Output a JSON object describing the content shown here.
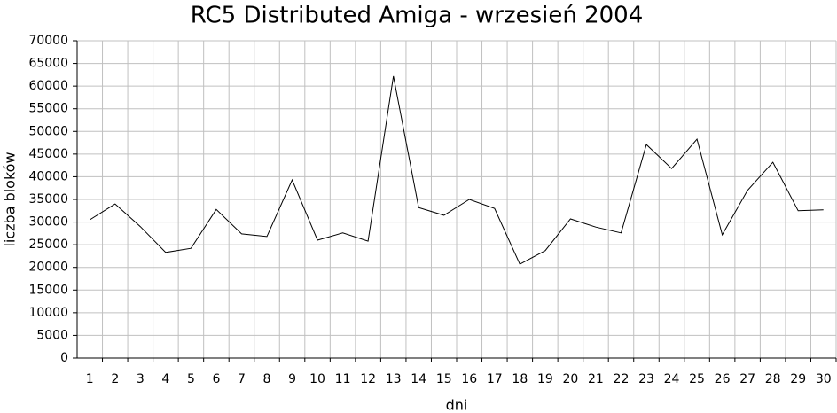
{
  "chart_data": {
    "type": "line",
    "title": "RC5 Distributed Amiga - wrzesień 2004",
    "x_label": "dni",
    "y_label": "liczba bloków",
    "categories": [
      "1",
      "2",
      "3",
      "4",
      "5",
      "6",
      "7",
      "8",
      "9",
      "10",
      "11",
      "12",
      "13",
      "14",
      "15",
      "16",
      "17",
      "18",
      "19",
      "20",
      "21",
      "22",
      "23",
      "24",
      "25",
      "26",
      "27",
      "28",
      "29",
      "30"
    ],
    "values": [
      30500,
      34000,
      29000,
      23300,
      24200,
      32800,
      27400,
      26800,
      39300,
      26000,
      27600,
      25800,
      62200,
      33200,
      31500,
      35000,
      33000,
      20700,
      23700,
      30700,
      28900,
      27600,
      47100,
      41800,
      48300,
      27200,
      37000,
      43200,
      32500,
      32700
    ],
    "color": "#000000",
    "ylim": [
      0,
      70000
    ],
    "yticks": [
      0,
      5000,
      10000,
      15000,
      20000,
      25000,
      30000,
      35000,
      40000,
      45000,
      50000,
      55000,
      60000,
      65000,
      70000
    ],
    "grid": true
  }
}
